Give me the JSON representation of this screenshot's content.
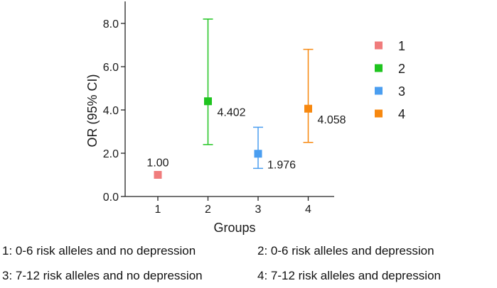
{
  "chart_data": {
    "type": "scatter",
    "title": "",
    "xlabel": "Groups",
    "ylabel": "OR (95% CI)",
    "categories": [
      "1",
      "2",
      "3",
      "4"
    ],
    "ylim": [
      0,
      9
    ],
    "yticks": [
      "0.0",
      "2.0",
      "4.0",
      "6.0",
      "8.0"
    ],
    "ytick_values": [
      0,
      2,
      4,
      6,
      8
    ],
    "series": [
      {
        "name": "1",
        "x": 1,
        "value": 1.0,
        "ci_low": 1.0,
        "ci_high": 1.0,
        "label": "1.00",
        "color": "#f07c7c"
      },
      {
        "name": "2",
        "x": 2,
        "value": 4.402,
        "ci_low": 2.4,
        "ci_high": 8.2,
        "label": "4.402",
        "color": "#1fc41f"
      },
      {
        "name": "3",
        "x": 3,
        "value": 1.976,
        "ci_low": 1.3,
        "ci_high": 3.2,
        "label": "1.976",
        "color": "#4b9ef0"
      },
      {
        "name": "4",
        "x": 4,
        "value": 4.058,
        "ci_low": 2.5,
        "ci_high": 6.8,
        "label": "4.058",
        "color": "#f7880f"
      }
    ],
    "legend": [
      "1",
      "2",
      "3",
      "4"
    ],
    "legend_position": "right"
  },
  "footnotes": {
    "g1": "1: 0-6 risk alleles and no depression",
    "g2": "2: 0-6 risk alleles and depression",
    "g3": "3: 7-12 risk alleles and no depression",
    "g4": "4: 7-12 risk alleles and depression"
  }
}
